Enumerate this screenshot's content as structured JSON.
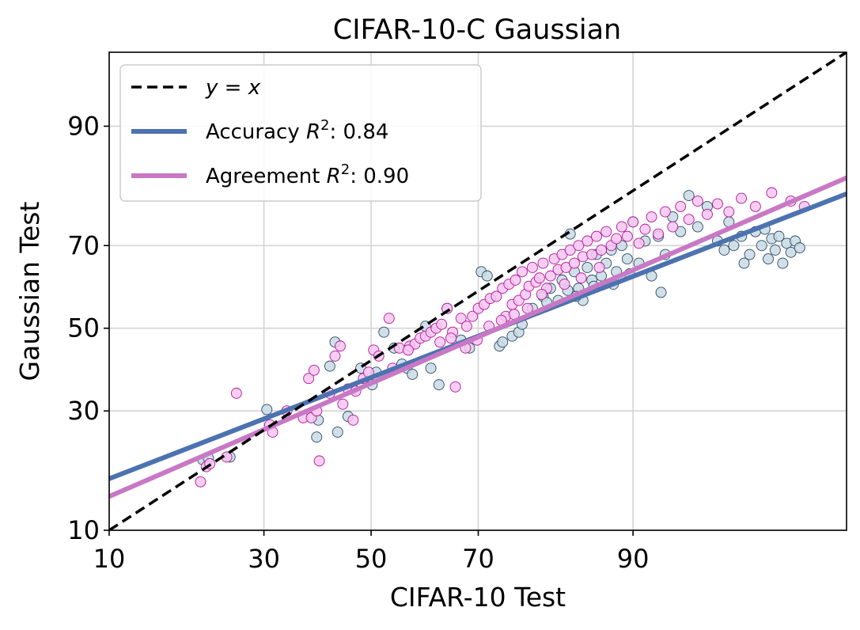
{
  "chart_data": {
    "type": "scatter",
    "title": "CIFAR-10-C Gaussian",
    "xlabel": "CIFAR-10 Test",
    "ylabel": "Gaussian Test",
    "scale": "probit",
    "xlim": [
      10,
      99
    ],
    "ylim": [
      10,
      96
    ],
    "xticks": [
      "10",
      "30",
      "50",
      "70",
      "90"
    ],
    "yticks": [
      "10",
      "30",
      "50",
      "70",
      "90"
    ],
    "grid": true,
    "legend_position": "top-left",
    "colors": {
      "identity": "#000000",
      "accuracy_line": "#4c72b0",
      "agreement_line": "#c878c4",
      "accuracy_fill": "#c9dbe4",
      "accuracy_edge": "#2d4a64",
      "agreement_fill": "#f6c6f0",
      "agreement_edge": "#b0189a"
    },
    "legend": [
      {
        "id": "identity",
        "math": "y = x",
        "text": ""
      },
      {
        "id": "accuracy",
        "text": "Accuracy ",
        "math": "R",
        "sup": "2",
        "suffix": ": 0.84"
      },
      {
        "id": "agreement",
        "text": "Agreement ",
        "math": "R",
        "sup": "2",
        "suffix": ": 0.90"
      }
    ],
    "fit_lines": {
      "identity": [
        [
          10,
          10
        ],
        [
          99,
          96
        ]
      ],
      "accuracy": [
        [
          10,
          17.0
        ],
        [
          99,
          80.3
        ]
      ],
      "agreement": [
        [
          10,
          14.3
        ],
        [
          99,
          83.0
        ]
      ]
    },
    "series": [
      {
        "name": "Accuracy",
        "points": [
          [
            20.5,
            20.2
          ],
          [
            21.3,
            20.5
          ],
          [
            24.5,
            20.7
          ],
          [
            30.5,
            30.3
          ],
          [
            39.5,
            24.5
          ],
          [
            39.8,
            28.0
          ],
          [
            42.0,
            40.5
          ],
          [
            43.0,
            46.5
          ],
          [
            43.5,
            25.5
          ],
          [
            45.5,
            28.8
          ],
          [
            46.5,
            35.0
          ],
          [
            48.0,
            40.0
          ],
          [
            50.2,
            36.0
          ],
          [
            51.0,
            39.0
          ],
          [
            52.5,
            49.0
          ],
          [
            54.5,
            45.0
          ],
          [
            56.0,
            41.0
          ],
          [
            57.0,
            40.0
          ],
          [
            58.0,
            38.5
          ],
          [
            60.5,
            50.5
          ],
          [
            61.5,
            40.0
          ],
          [
            63.0,
            36.0
          ],
          [
            64.5,
            55.0
          ],
          [
            67.0,
            47.0
          ],
          [
            68.5,
            45.0
          ],
          [
            70.5,
            64.0
          ],
          [
            71.5,
            63.0
          ],
          [
            73.5,
            45.5
          ],
          [
            74.0,
            46.5
          ],
          [
            75.5,
            48.0
          ],
          [
            76.5,
            49.0
          ],
          [
            77.0,
            51.0
          ],
          [
            78.5,
            55.0
          ],
          [
            80.0,
            58.0
          ],
          [
            81.0,
            60.0
          ],
          [
            82.0,
            57.0
          ],
          [
            82.5,
            62.0
          ],
          [
            83.5,
            72.5
          ],
          [
            84.0,
            64.0
          ],
          [
            84.5,
            60.0
          ],
          [
            85.0,
            57.0
          ],
          [
            85.5,
            65.0
          ],
          [
            86.0,
            62.0
          ],
          [
            86.5,
            68.0
          ],
          [
            87.0,
            63.0
          ],
          [
            87.5,
            66.0
          ],
          [
            88.0,
            69.0
          ],
          [
            88.5,
            64.0
          ],
          [
            89.0,
            70.0
          ],
          [
            89.5,
            67.0
          ],
          [
            90.0,
            75.0
          ],
          [
            90.5,
            66.0
          ],
          [
            91.0,
            71.0
          ],
          [
            91.5,
            63.0
          ],
          [
            92.0,
            72.0
          ],
          [
            92.5,
            68.0
          ],
          [
            93.0,
            76.0
          ],
          [
            93.5,
            73.0
          ],
          [
            94.0,
            80.0
          ],
          [
            94.5,
            74.0
          ],
          [
            95.0,
            78.0
          ],
          [
            95.5,
            71.0
          ],
          [
            96.0,
            75.0
          ],
          [
            96.5,
            72.0
          ],
          [
            96.8,
            68.0
          ],
          [
            97.0,
            73.0
          ],
          [
            97.2,
            70.0
          ],
          [
            97.4,
            67.0
          ],
          [
            97.5,
            71.5
          ],
          [
            97.6,
            69.0
          ],
          [
            97.7,
            72.0
          ],
          [
            97.8,
            66.0
          ],
          [
            97.9,
            70.5
          ],
          [
            98.0,
            68.5
          ],
          [
            98.1,
            71.0
          ],
          [
            98.2,
            69.5
          ],
          [
            96.2,
            70.0
          ],
          [
            95.8,
            69.0
          ],
          [
            96.6,
            66.0
          ],
          [
            97.3,
            73.5
          ],
          [
            92.2,
            59.0
          ],
          [
            89.7,
            63.5
          ],
          [
            88.2,
            61.0
          ],
          [
            86.2,
            60.5
          ],
          [
            84.2,
            58.0
          ],
          [
            83.2,
            59.5
          ],
          [
            80.5,
            56.5
          ]
        ]
      },
      {
        "name": "Agreement",
        "points": [
          [
            20.2,
            16.5
          ],
          [
            21.0,
            19.0
          ],
          [
            21.5,
            19.5
          ],
          [
            24.0,
            20.7
          ],
          [
            25.5,
            34.0
          ],
          [
            31.0,
            27.0
          ],
          [
            31.5,
            25.5
          ],
          [
            34.0,
            30.0
          ],
          [
            37.0,
            28.5
          ],
          [
            38.0,
            37.5
          ],
          [
            38.5,
            28.5
          ],
          [
            39.0,
            39.5
          ],
          [
            39.5,
            30.0
          ],
          [
            40.0,
            20.0
          ],
          [
            42.0,
            34.0
          ],
          [
            43.0,
            43.0
          ],
          [
            44.0,
            45.5
          ],
          [
            44.5,
            31.5
          ],
          [
            45.5,
            35.0
          ],
          [
            46.5,
            28.0
          ],
          [
            48.5,
            37.5
          ],
          [
            50.5,
            44.5
          ],
          [
            51.5,
            43.0
          ],
          [
            53.5,
            52.5
          ],
          [
            55.5,
            45.0
          ],
          [
            57.5,
            45.5
          ],
          [
            58.5,
            46.0
          ],
          [
            59.5,
            47.5
          ],
          [
            60.5,
            48.0
          ],
          [
            61.5,
            49.0
          ],
          [
            62.5,
            50.0
          ],
          [
            63.5,
            51.0
          ],
          [
            64.5,
            55.0
          ],
          [
            65.5,
            49.0
          ],
          [
            66.0,
            35.5
          ],
          [
            67.0,
            52.5
          ],
          [
            68.0,
            50.5
          ],
          [
            69.0,
            53.0
          ],
          [
            70.0,
            55.0
          ],
          [
            71.0,
            56.0
          ],
          [
            72.0,
            57.5
          ],
          [
            73.0,
            58.0
          ],
          [
            74.0,
            60.0
          ],
          [
            74.5,
            53.0
          ],
          [
            75.0,
            61.0
          ],
          [
            75.5,
            56.0
          ],
          [
            76.0,
            62.0
          ],
          [
            76.5,
            57.0
          ],
          [
            77.0,
            64.0
          ],
          [
            77.5,
            58.5
          ],
          [
            78.0,
            60.5
          ],
          [
            78.5,
            65.0
          ],
          [
            79.0,
            61.5
          ],
          [
            79.5,
            62.5
          ],
          [
            80.0,
            66.0
          ],
          [
            80.5,
            60.0
          ],
          [
            81.0,
            63.0
          ],
          [
            81.5,
            67.0
          ],
          [
            82.0,
            64.5
          ],
          [
            82.5,
            68.0
          ],
          [
            83.0,
            65.0
          ],
          [
            83.5,
            69.0
          ],
          [
            84.0,
            66.0
          ],
          [
            84.5,
            70.0
          ],
          [
            85.0,
            67.5
          ],
          [
            85.5,
            71.0
          ],
          [
            86.0,
            68.0
          ],
          [
            86.5,
            72.0
          ],
          [
            87.0,
            69.0
          ],
          [
            87.5,
            73.0
          ],
          [
            88.0,
            70.0
          ],
          [
            88.5,
            71.5
          ],
          [
            89.0,
            74.0
          ],
          [
            89.5,
            72.0
          ],
          [
            90.0,
            75.0
          ],
          [
            90.5,
            70.5
          ],
          [
            91.0,
            73.5
          ],
          [
            91.5,
            76.0
          ],
          [
            92.0,
            72.5
          ],
          [
            92.5,
            77.0
          ],
          [
            93.0,
            74.0
          ],
          [
            93.5,
            78.0
          ],
          [
            94.0,
            75.5
          ],
          [
            94.5,
            79.0
          ],
          [
            95.0,
            76.5
          ],
          [
            95.5,
            78.5
          ],
          [
            96.0,
            77.0
          ],
          [
            96.5,
            79.5
          ],
          [
            97.0,
            78.0
          ],
          [
            97.5,
            80.5
          ],
          [
            98.0,
            79.0
          ],
          [
            98.3,
            78.0
          ],
          [
            86.8,
            65.0
          ],
          [
            84.8,
            62.5
          ],
          [
            82.8,
            61.0
          ],
          [
            79.8,
            58.5
          ],
          [
            77.8,
            55.0
          ],
          [
            75.8,
            53.5
          ],
          [
            73.8,
            52.0
          ],
          [
            71.8,
            50.5
          ],
          [
            69.8,
            47.0
          ],
          [
            67.8,
            45.0
          ],
          [
            65.2,
            47.5
          ],
          [
            63.2,
            46.5
          ],
          [
            57.2,
            44.5
          ],
          [
            54.2,
            40.0
          ],
          [
            49.5,
            39.0
          ],
          [
            47.0,
            34.5
          ]
        ]
      }
    ]
  }
}
